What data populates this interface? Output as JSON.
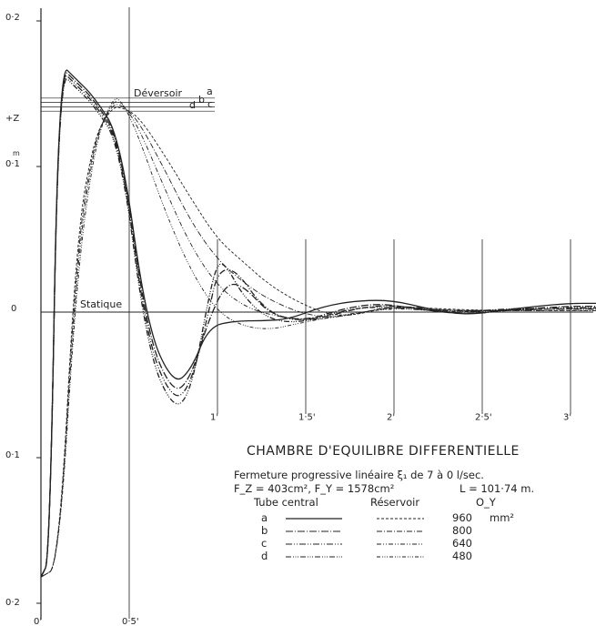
{
  "chart_data": {
    "type": "line",
    "title": "CHAMBRE D'EQUILIBRE DIFFERENTIELLE",
    "subtitle": "Fermeture progressive linéaire ξ₁ de 7 à 0 l/sec.",
    "params_left": "F_Z = 403cm², F_Y = 1578cm²",
    "params_right": "L = 101·74 m.",
    "y_top_label": "0·2",
    "y_upper_label": "0·1",
    "y_zero_label": "0",
    "y_lower_label": "0·1",
    "y_bottom_label": "0·2",
    "y_unit": "m",
    "y_axis_name": "+Z",
    "x_ticks": [
      "0'",
      "0·5'",
      "1'",
      "1·5'",
      "2'",
      "2·5'",
      "3'"
    ],
    "xlim": [
      0,
      3.1
    ],
    "ylim": [
      -0.2,
      0.2
    ],
    "ann_deversoir": "Déversoir",
    "ann_letters": [
      "a",
      "b",
      "c",
      "d"
    ],
    "ann_statique": "Statique",
    "legend": {
      "col_tube": "Tube central",
      "col_reservoir": "Réservoir",
      "col_oy": "O_Y",
      "unit": "mm²",
      "rows": [
        {
          "key": "a",
          "oy": "960"
        },
        {
          "key": "b",
          "oy": "800"
        },
        {
          "key": "c",
          "oy": "640"
        },
        {
          "key": "d",
          "oy": "480"
        }
      ]
    },
    "series": [
      {
        "name": "a",
        "kind": "tube",
        "x": [
          0,
          0.05,
          0.1,
          0.2,
          0.3,
          0.45,
          0.6,
          0.75,
          0.85,
          0.95,
          1.1,
          1.25,
          1.4,
          1.6,
          1.8,
          2.0,
          2.2,
          2.4,
          2.6,
          2.8,
          3.0,
          3.15
        ],
        "y": [
          -0.182,
          -0.17,
          0.172,
          0.16,
          0.148,
          0.12,
          -0.01,
          -0.05,
          -0.04,
          -0.01,
          -0.006,
          -0.006,
          -0.005,
          0.004,
          0.008,
          0.008,
          0.002,
          -0.002,
          0.001,
          0.004,
          0.006,
          0.006
        ]
      },
      {
        "name": "b",
        "kind": "tube",
        "x": [
          0,
          0.05,
          0.1,
          0.2,
          0.3,
          0.45,
          0.6,
          0.75,
          0.85,
          0.95,
          1.05,
          1.15,
          1.3,
          1.5,
          1.7,
          1.9,
          2.1,
          2.4,
          2.7,
          3.0,
          3.15
        ],
        "y": [
          -0.182,
          -0.17,
          0.17,
          0.158,
          0.146,
          0.118,
          -0.015,
          -0.057,
          -0.045,
          -0.005,
          0.02,
          0.018,
          -0.002,
          -0.006,
          0.002,
          0.006,
          0.003,
          -0.002,
          0.002,
          0.004,
          0.004
        ]
      },
      {
        "name": "c",
        "kind": "tube",
        "x": [
          0,
          0.05,
          0.1,
          0.2,
          0.3,
          0.45,
          0.6,
          0.75,
          0.85,
          0.95,
          1.0,
          1.1,
          1.25,
          1.4,
          1.6,
          1.8,
          2.0,
          2.3,
          2.6,
          2.9,
          3.15
        ],
        "y": [
          -0.182,
          -0.17,
          0.168,
          0.156,
          0.144,
          0.116,
          -0.02,
          -0.062,
          -0.05,
          0.0,
          0.028,
          0.03,
          0.004,
          -0.006,
          -0.004,
          0.003,
          0.005,
          -0.001,
          0.002,
          0.003,
          0.003
        ]
      },
      {
        "name": "d",
        "kind": "tube",
        "x": [
          0,
          0.05,
          0.1,
          0.2,
          0.3,
          0.45,
          0.6,
          0.75,
          0.85,
          0.95,
          1.0,
          1.05,
          1.15,
          1.3,
          1.5,
          1.7,
          1.9,
          2.2,
          2.5,
          2.8,
          3.15
        ],
        "y": [
          -0.182,
          -0.17,
          0.166,
          0.154,
          0.142,
          0.114,
          -0.025,
          -0.068,
          -0.055,
          0.01,
          0.034,
          0.032,
          0.01,
          -0.006,
          -0.007,
          0.001,
          0.004,
          0.001,
          0.001,
          0.002,
          0.002
        ]
      },
      {
        "name": "a",
        "kind": "reservoir",
        "x": [
          0,
          0.1,
          0.2,
          0.3,
          0.4,
          0.45,
          0.55,
          0.7,
          0.85,
          1.0,
          1.15,
          1.3,
          1.5,
          1.7,
          2.0,
          2.3,
          2.6,
          2.9,
          3.15
        ],
        "y": [
          -0.182,
          -0.175,
          0.05,
          0.12,
          0.14,
          0.141,
          0.135,
          0.108,
          0.078,
          0.05,
          0.034,
          0.018,
          0.004,
          -0.004,
          0.004,
          0.002,
          0.001,
          0.002,
          0.003
        ]
      },
      {
        "name": "b",
        "kind": "reservoir",
        "x": [
          0,
          0.1,
          0.2,
          0.3,
          0.4,
          0.45,
          0.55,
          0.7,
          0.85,
          1.0,
          1.15,
          1.3,
          1.5,
          1.7,
          2.0,
          2.3,
          2.6,
          2.9,
          3.15
        ],
        "y": [
          -0.182,
          -0.175,
          0.04,
          0.118,
          0.142,
          0.143,
          0.132,
          0.098,
          0.062,
          0.036,
          0.02,
          0.008,
          -0.002,
          -0.004,
          0.005,
          0.001,
          0.001,
          0.002,
          0.002
        ]
      },
      {
        "name": "c",
        "kind": "reservoir",
        "x": [
          0,
          0.1,
          0.2,
          0.3,
          0.4,
          0.45,
          0.55,
          0.7,
          0.85,
          1.0,
          1.15,
          1.3,
          1.5,
          1.7,
          2.0,
          2.3,
          2.6,
          2.9,
          3.15
        ],
        "y": [
          -0.182,
          -0.175,
          0.03,
          0.116,
          0.144,
          0.145,
          0.128,
          0.085,
          0.045,
          0.018,
          0.004,
          -0.002,
          -0.006,
          -0.003,
          0.004,
          0.001,
          0.001,
          0.001,
          0.001
        ]
      },
      {
        "name": "d",
        "kind": "reservoir",
        "x": [
          0,
          0.1,
          0.2,
          0.3,
          0.4,
          0.45,
          0.55,
          0.7,
          0.85,
          1.0,
          1.15,
          1.3,
          1.45,
          1.7,
          2.0,
          2.3,
          2.6,
          2.9,
          3.15
        ],
        "y": [
          -0.182,
          -0.175,
          0.02,
          0.112,
          0.146,
          0.147,
          0.122,
          0.07,
          0.028,
          0.0,
          -0.01,
          -0.012,
          -0.008,
          -0.002,
          0.003,
          0.0,
          0.001,
          0.001,
          0.001
        ]
      }
    ]
  }
}
